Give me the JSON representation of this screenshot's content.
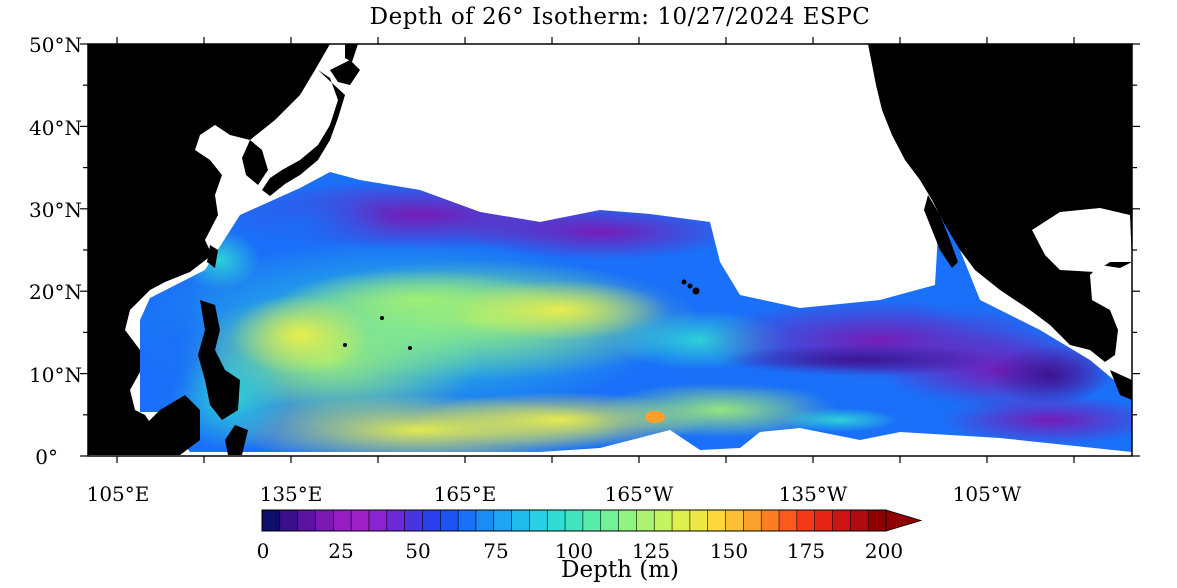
{
  "title": "Depth of 26° Isotherm: 10/27/2024 ESPC",
  "map": {
    "lat_labels": [
      "50°N",
      "40°N",
      "30°N",
      "20°N",
      "10°N",
      "0°"
    ],
    "lon_labels": [
      "105°E",
      "135°E",
      "165°E",
      "165°W",
      "135°W",
      "105°W"
    ],
    "lat_range": [
      0,
      50
    ],
    "lon_range_east": [
      100,
      280
    ]
  },
  "colorbar": {
    "title": "Depth (m)",
    "tick_labels": [
      "0",
      "25",
      "50",
      "75",
      "100",
      "125",
      "150",
      "175",
      "200"
    ],
    "range": [
      0,
      200
    ],
    "colors": [
      "#0d0d6b",
      "#3a0f8c",
      "#5a12a0",
      "#7a18b4",
      "#961cc4",
      "#a020c8",
      "#8a24d0",
      "#6a2ad8",
      "#4a34e0",
      "#2a40ec",
      "#1a55f4",
      "#1a70f8",
      "#1a8cf8",
      "#1ea6f4",
      "#22bcec",
      "#28d0e4",
      "#30dcd4",
      "#40e4c0",
      "#58ecac",
      "#74f098",
      "#90f484",
      "#acf470",
      "#c4f460",
      "#dcf050",
      "#eee844",
      "#fcd83c",
      "#fcc034",
      "#fca02c",
      "#fc7e24",
      "#fc5a1c",
      "#f43a18",
      "#e42414",
      "#cc1412",
      "#b00c10",
      "#900000"
    ]
  }
}
